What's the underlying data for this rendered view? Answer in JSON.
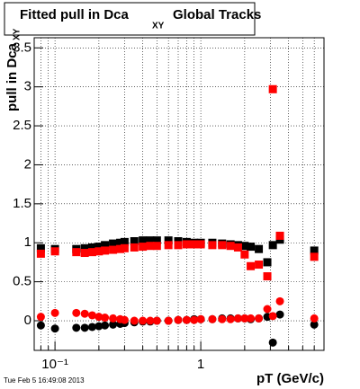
{
  "chart_data": {
    "type": "scatter",
    "title": "Fitted pull in Dca",
    "title_subscript": "XY",
    "title_suffix": "Global Tracks",
    "y_label": "pull in Dca",
    "y_label_subscript": "XY",
    "x_label": "pT (GeV/c)",
    "timestamp": "Tue Feb  5 16:49:08 2013",
    "log_x": true,
    "grid": true,
    "xlim": [
      0.072,
      7
    ],
    "ylim": [
      -0.38,
      3.63
    ],
    "xticks": [
      {
        "value": 0.1,
        "label": "10⁻¹"
      },
      1
    ],
    "xminorticks": [
      0.08,
      0.09,
      0.2,
      0.3,
      0.4,
      0.5,
      0.6,
      0.7,
      0.8,
      0.9,
      2,
      3,
      4,
      5,
      6,
      7
    ],
    "yticks": [
      0,
      0.5,
      1,
      1.5,
      2,
      2.5,
      3,
      3.5
    ],
    "x": [
      0.08,
      0.1,
      0.14,
      0.16,
      0.18,
      0.2,
      0.22,
      0.25,
      0.28,
      0.3,
      0.35,
      0.4,
      0.45,
      0.5,
      0.6,
      0.7,
      0.8,
      0.9,
      1.0,
      1.2,
      1.4,
      1.6,
      1.8,
      2.0,
      2.2,
      2.5,
      2.86,
      3.12,
      3.49,
      6.0
    ],
    "series": [
      {
        "color": "#000000",
        "marker": "square",
        "values": [
          0.93,
          0.92,
          0.92,
          0.93,
          0.94,
          0.95,
          0.97,
          0.99,
          1.0,
          1.01,
          1.02,
          1.03,
          1.03,
          1.03,
          1.03,
          1.02,
          1.01,
          1.0,
          1.0,
          1.0,
          0.99,
          0.98,
          0.97,
          0.96,
          0.95,
          0.92,
          0.75,
          0.97,
          1.04,
          0.9
        ]
      },
      {
        "color": "#ff0000",
        "marker": "square",
        "values": [
          0.86,
          0.89,
          0.88,
          0.87,
          0.88,
          0.89,
          0.9,
          0.91,
          0.92,
          0.93,
          0.94,
          0.95,
          0.96,
          0.96,
          0.97,
          0.97,
          0.98,
          0.98,
          0.98,
          0.97,
          0.97,
          0.96,
          0.94,
          0.85,
          0.7,
          0.72,
          0.57,
          2.97,
          1.09,
          0.82
        ]
      },
      {
        "color": "#000000",
        "marker": "circle",
        "values": [
          -0.06,
          -0.1,
          -0.09,
          -0.09,
          -0.08,
          -0.07,
          -0.06,
          -0.05,
          -0.04,
          -0.03,
          -0.02,
          -0.01,
          -0.01,
          0.0,
          0.0,
          0.01,
          0.01,
          0.02,
          0.02,
          0.02,
          0.03,
          0.03,
          0.03,
          0.03,
          0.02,
          0.03,
          0.05,
          -0.28,
          0.08,
          -0.05
        ]
      },
      {
        "color": "#ff0000",
        "marker": "circle",
        "values": [
          0.05,
          0.1,
          0.1,
          0.09,
          0.07,
          0.05,
          0.04,
          0.03,
          0.02,
          0.01,
          0.0,
          0.0,
          0.0,
          0.0,
          0.0,
          0.01,
          0.01,
          0.01,
          0.02,
          0.02,
          0.02,
          0.02,
          0.03,
          0.03,
          0.03,
          0.03,
          0.15,
          0.06,
          0.25,
          0.03
        ]
      }
    ]
  }
}
